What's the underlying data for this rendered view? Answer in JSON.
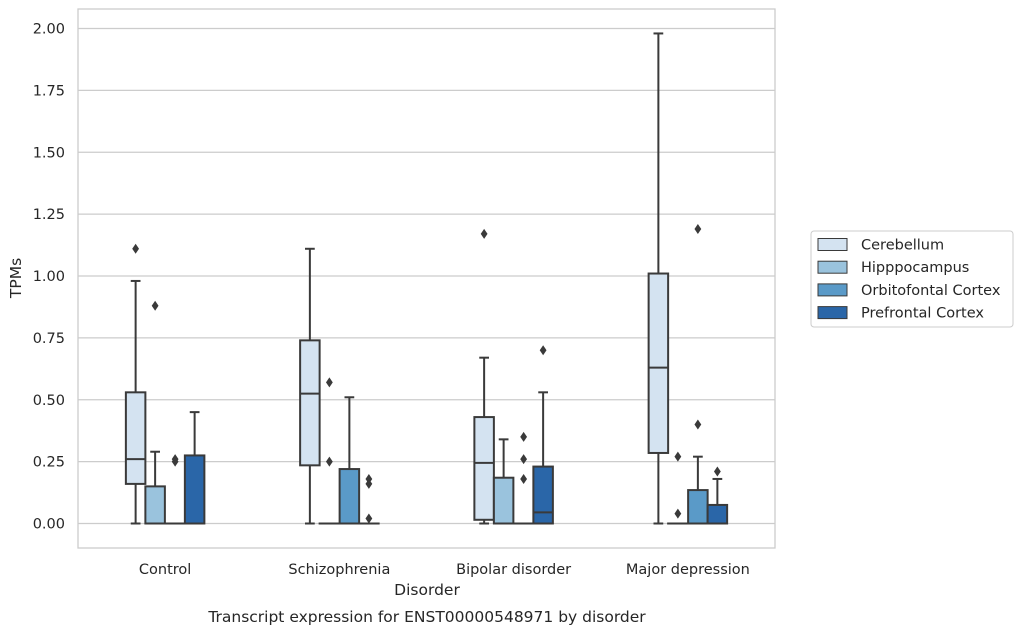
{
  "chart_data": {
    "type": "box",
    "caption": "Transcript expression for ENST00000548971 by disorder",
    "xlabel": "Disorder",
    "ylabel": "TPMs",
    "ylim": [
      -0.1,
      2.08
    ],
    "yticks": [
      "0.00",
      "0.25",
      "0.50",
      "0.75",
      "1.00",
      "1.25",
      "1.50",
      "1.75",
      "2.00"
    ],
    "grid": "horizontal",
    "legend_position": "right",
    "categories": [
      "Control",
      "Schizophrenia",
      "Bipolar disorder",
      "Major depression"
    ],
    "series": [
      {
        "name": "Cerebellum",
        "color": "#d4e3f1",
        "boxes": [
          {
            "q1": 0.16,
            "median": 0.26,
            "q3": 0.53,
            "whislo": 0.0,
            "whishi": 0.98,
            "fliers": [
              1.11
            ]
          },
          {
            "q1": 0.235,
            "median": 0.525,
            "q3": 0.74,
            "whislo": 0.0,
            "whishi": 1.11,
            "fliers": []
          },
          {
            "q1": 0.015,
            "median": 0.245,
            "q3": 0.43,
            "whislo": 0.0,
            "whishi": 0.67,
            "fliers": [
              1.17
            ]
          },
          {
            "q1": 0.285,
            "median": 0.63,
            "q3": 1.01,
            "whislo": 0.0,
            "whishi": 1.98,
            "fliers": []
          }
        ]
      },
      {
        "name": "Hipppocampus",
        "color": "#9ac3dd",
        "boxes": [
          {
            "q1": 0.0,
            "median": 0.0,
            "q3": 0.15,
            "whislo": 0.0,
            "whishi": 0.29,
            "fliers": [
              0.88
            ]
          },
          {
            "q1": 0.0,
            "median": 0.0,
            "q3": 0.0,
            "whislo": 0.0,
            "whishi": 0.0,
            "fliers": [
              0.25,
              0.57
            ]
          },
          {
            "q1": 0.0,
            "median": 0.0,
            "q3": 0.185,
            "whislo": 0.0,
            "whishi": 0.34,
            "fliers": []
          },
          {
            "q1": 0.0,
            "median": 0.0,
            "q3": 0.0,
            "whislo": 0.0,
            "whishi": 0.0,
            "fliers": [
              0.04,
              0.27
            ]
          }
        ]
      },
      {
        "name": "Orbitofontal Cortex",
        "color": "#5a9ac8",
        "boxes": [
          {
            "q1": 0.0,
            "median": 0.0,
            "q3": 0.0,
            "whislo": 0.0,
            "whishi": 0.0,
            "fliers": [
              0.25,
              0.26
            ]
          },
          {
            "q1": 0.0,
            "median": 0.0,
            "q3": 0.22,
            "whislo": 0.0,
            "whishi": 0.51,
            "fliers": []
          },
          {
            "q1": 0.0,
            "median": 0.0,
            "q3": 0.0,
            "whislo": 0.0,
            "whishi": 0.0,
            "fliers": [
              0.18,
              0.26,
              0.35
            ]
          },
          {
            "q1": 0.0,
            "median": 0.0,
            "q3": 0.135,
            "whislo": 0.0,
            "whishi": 0.27,
            "fliers": [
              0.4,
              1.19
            ]
          }
        ]
      },
      {
        "name": "Prefrontal Cortex",
        "color": "#2a66a8",
        "boxes": [
          {
            "q1": 0.0,
            "median": 0.0,
            "q3": 0.275,
            "whislo": 0.0,
            "whishi": 0.45,
            "fliers": []
          },
          {
            "q1": 0.0,
            "median": 0.0,
            "q3": 0.0,
            "whislo": 0.0,
            "whishi": 0.0,
            "fliers": [
              0.02,
              0.16,
              0.18
            ]
          },
          {
            "q1": 0.0,
            "median": 0.045,
            "q3": 0.23,
            "whislo": 0.0,
            "whishi": 0.53,
            "fliers": [
              0.7
            ]
          },
          {
            "q1": 0.0,
            "median": 0.0,
            "q3": 0.075,
            "whislo": 0.0,
            "whishi": 0.18,
            "fliers": [
              0.21
            ]
          }
        ]
      }
    ]
  }
}
